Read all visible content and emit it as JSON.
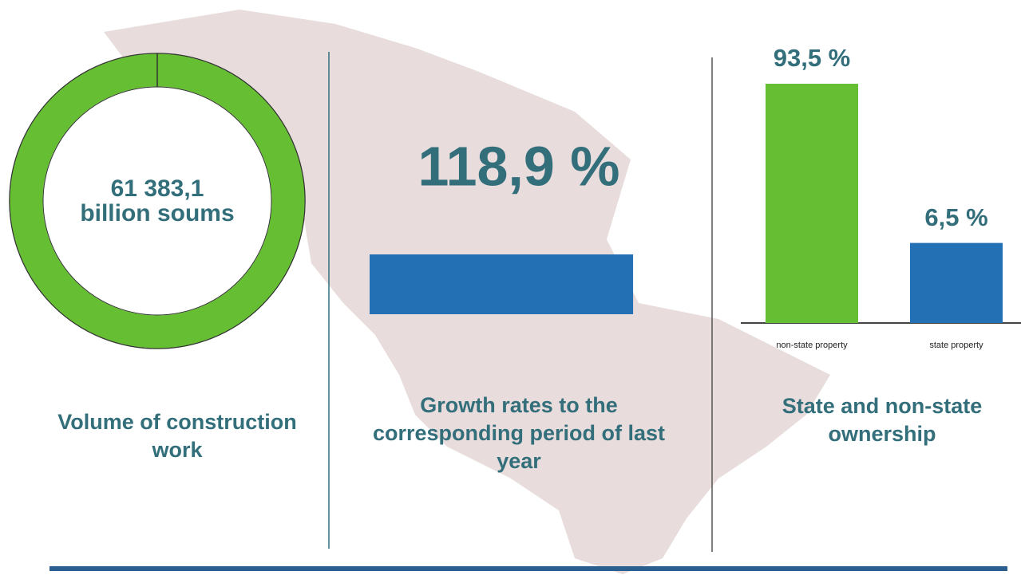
{
  "chart_data": [
    {
      "type": "donut",
      "center_label": [
        "61 383,1",
        "billion soums"
      ],
      "caption": "Volume of construction work",
      "color": "#66bf33"
    },
    {
      "type": "hbar",
      "values": [
        118.9
      ],
      "value_labels": [
        "118,9 %"
      ],
      "xlim": [
        0,
        125
      ],
      "color": "#2470b5",
      "caption": "Growth rates to the corresponding period of last year"
    },
    {
      "type": "bar",
      "categories": [
        "non-state property",
        "state property"
      ],
      "values": [
        93.5,
        6.5
      ],
      "value_labels": [
        "93,5 %",
        "6,5 %"
      ],
      "colors": [
        "#66bf33",
        "#2470b5"
      ],
      "yscale": "log",
      "ylim": [
        1.7,
        100
      ],
      "caption": "State and non-state ownership"
    }
  ]
}
